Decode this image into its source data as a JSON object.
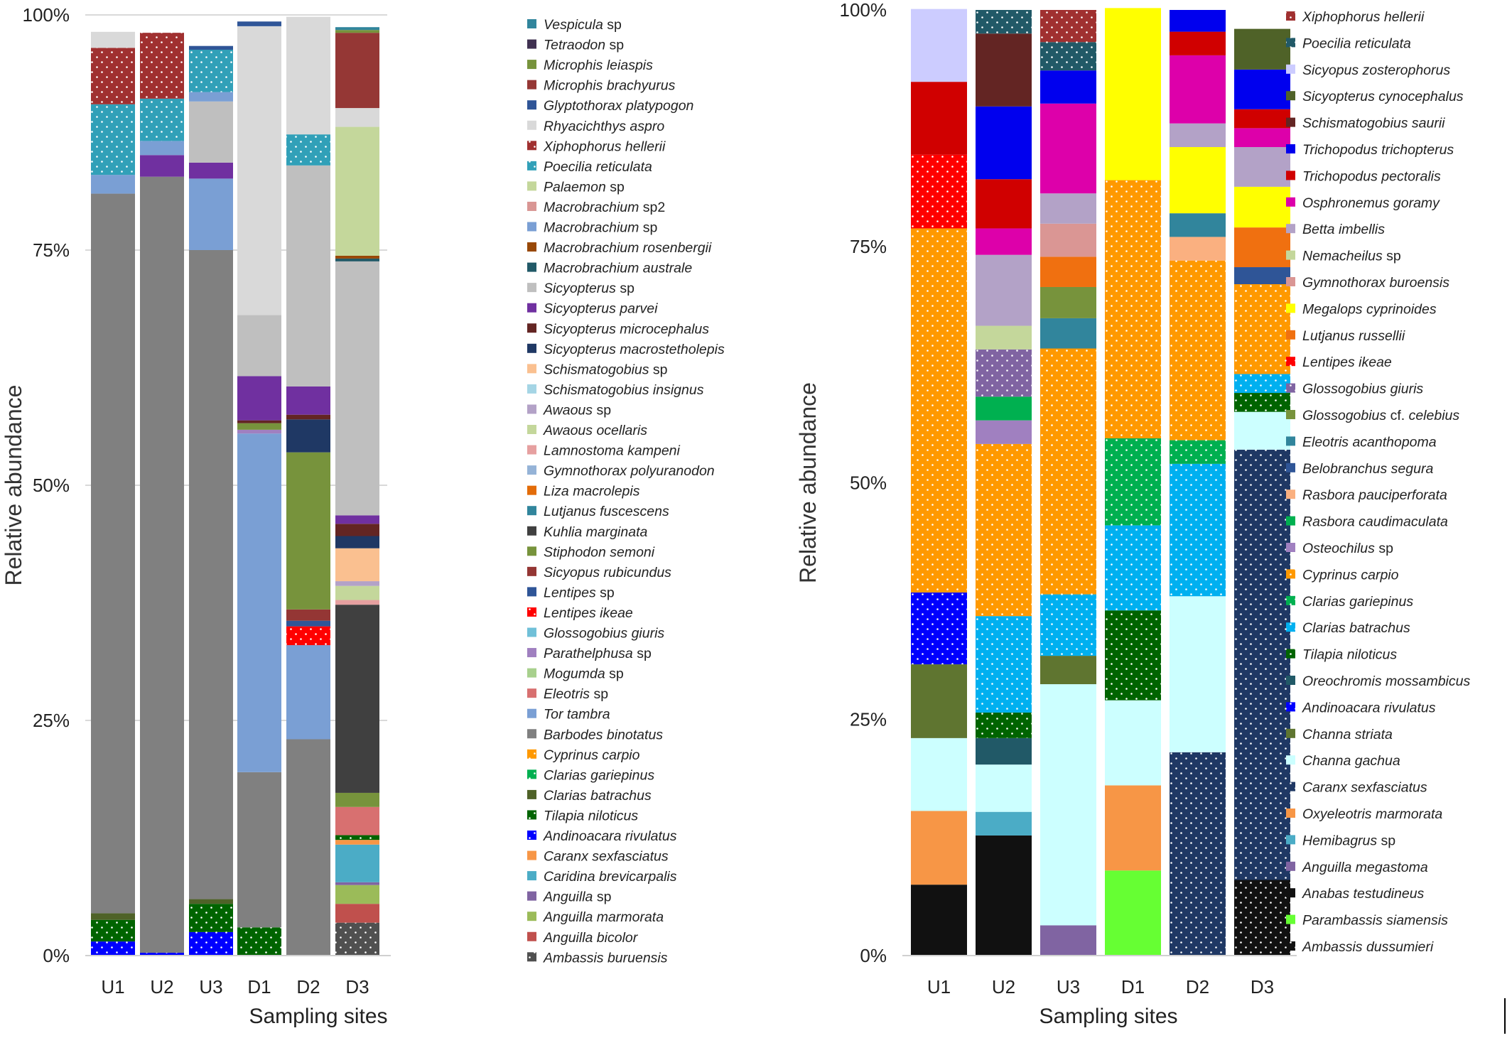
{
  "chart_data": [
    {
      "type": "stacked_bar",
      "x": [
        "U1",
        "U2",
        "U3",
        "D1",
        "D2",
        "D3"
      ],
      "xlabel": "Sampling sites",
      "ylabel": "Relative abundance",
      "yticks": [
        "0%",
        "25%",
        "50%",
        "75%",
        "100%"
      ],
      "ylim": [
        0,
        100
      ],
      "grid": true,
      "legend_position": "right",
      "series": [
        {
          "name": "Ambassis buruensis",
          "color": "#505050",
          "pattern": true,
          "values": [
            0,
            0,
            0,
            0,
            0,
            3.5
          ]
        },
        {
          "name": "Anguilla bicolor",
          "color": "#c0504d",
          "values": [
            0,
            0,
            0,
            0,
            0,
            2
          ]
        },
        {
          "name": "Anguilla marmorata",
          "color": "#9bbb59",
          "values": [
            0,
            0,
            0,
            0,
            0,
            2
          ]
        },
        {
          "name": "Anguilla sp",
          "color": "#8064a2",
          "values": [
            0,
            0,
            0,
            0,
            0,
            0.3
          ]
        },
        {
          "name": "Caridina brevicarpalis",
          "color": "#4bacc6",
          "values": [
            0,
            0,
            0,
            0,
            0,
            4
          ]
        },
        {
          "name": "Caranx sexfasciatus",
          "color": "#f79646",
          "values": [
            0,
            0,
            0,
            0,
            0,
            0.5
          ]
        },
        {
          "name": "Andinoacara rivulatus",
          "color": "#0000ff",
          "pattern": true,
          "values": [
            1.5,
            0.3,
            2.5,
            0,
            0,
            0
          ]
        },
        {
          "name": "Tilapia niloticus",
          "color": "#006400",
          "pattern": true,
          "values": [
            2.3,
            0,
            3,
            3,
            0,
            0.5
          ]
        },
        {
          "name": "Clarias batrachus",
          "color": "#4f6228",
          "values": [
            0.7,
            0,
            0.5,
            0,
            0,
            0
          ]
        },
        {
          "name": "Clarias gariepinus",
          "color": "#00b050",
          "pattern": true,
          "values": [
            0,
            0,
            0,
            0,
            0,
            0
          ]
        },
        {
          "name": "Cyprinus carpio",
          "color": "#ff9900",
          "pattern": true,
          "values": [
            0,
            0,
            0,
            0,
            0,
            0
          ]
        },
        {
          "name": "Barbodes binotatus",
          "color": "#808080",
          "values": [
            76.5,
            82.5,
            69,
            16.5,
            23,
            0
          ]
        },
        {
          "name": "Tor tambra",
          "color": "#7a9fd4",
          "values": [
            0,
            0,
            7.6,
            36,
            10,
            0
          ]
        },
        {
          "name": "Eleotris sp",
          "color": "#d87070",
          "values": [
            0,
            0,
            0,
            0,
            0,
            3
          ]
        },
        {
          "name": "Mogumda sp",
          "color": "#a8d08d",
          "values": [
            0,
            0,
            0,
            0,
            0,
            0
          ]
        },
        {
          "name": "Parathelphusa sp",
          "color": "#a080c0",
          "values": [
            0,
            0,
            0,
            0.4,
            0,
            0
          ]
        },
        {
          "name": "Glossogobius giuris",
          "color": "#70c0d8",
          "values": [
            0,
            0,
            0,
            0,
            0,
            0
          ]
        },
        {
          "name": "Lentipes ikeae",
          "color": "#ff0000",
          "pattern": true,
          "values": [
            0,
            0,
            0,
            0,
            2,
            0
          ]
        },
        {
          "name": "Lentipes sp",
          "color": "#2f5597",
          "values": [
            0,
            0,
            0,
            0,
            0.6,
            0
          ]
        },
        {
          "name": "Sicyopus rubicundus",
          "color": "#943634",
          "values": [
            0,
            0,
            0,
            0,
            1.2,
            0
          ]
        },
        {
          "name": "Stiphodon semoni",
          "color": "#77933c",
          "values": [
            0,
            0,
            0,
            0.7,
            16.7,
            1.5
          ]
        },
        {
          "name": "Kuhlia marginata",
          "color": "#404040",
          "values": [
            0,
            0,
            0,
            0,
            0,
            20
          ]
        },
        {
          "name": "Lutjanus fuscescens",
          "color": "#31859c",
          "values": [
            0,
            0,
            0,
            0,
            0,
            0
          ]
        },
        {
          "name": "Liza macrolepis",
          "color": "#e36c09",
          "values": [
            0,
            0,
            0,
            0,
            0,
            0
          ]
        },
        {
          "name": "Gymnothorax polyuranodon",
          "color": "#95b3d7",
          "values": [
            0,
            0,
            0,
            0,
            0,
            0
          ]
        },
        {
          "name": "Lamnostoma kampeni",
          "color": "#e6a0a0",
          "values": [
            0,
            0,
            0,
            0,
            0,
            0.5
          ]
        },
        {
          "name": "Awaous ocellaris",
          "color": "#c4d79b",
          "values": [
            0,
            0,
            0,
            0,
            0,
            1.5
          ]
        },
        {
          "name": "Awaous sp",
          "color": "#b3a2c7",
          "values": [
            0,
            0,
            0,
            0,
            0,
            0.5
          ]
        },
        {
          "name": "Schismatogobius insignus",
          "color": "#a5d5e5",
          "values": [
            0,
            0,
            0,
            0,
            0,
            0
          ]
        },
        {
          "name": "Schismatogobius sp",
          "color": "#fac090",
          "values": [
            0,
            0,
            0,
            0,
            0,
            3.5
          ]
        },
        {
          "name": "Sicyopterus macrostetholepis",
          "color": "#1f3864",
          "values": [
            0,
            0,
            0,
            0,
            3.5,
            1.3
          ]
        },
        {
          "name": "Sicyopterus microcephalus",
          "color": "#632523",
          "values": [
            0,
            0,
            0,
            0.3,
            0.5,
            1.3
          ]
        },
        {
          "name": "Sicyopterus parvei",
          "color": "#7030a0",
          "values": [
            0,
            2.3,
            1.7,
            4.7,
            3,
            0.9
          ]
        },
        {
          "name": "Sicyopterus sp",
          "color": "#bfbfbf",
          "values": [
            0,
            0,
            6.5,
            6.5,
            23.5,
            27
          ]
        },
        {
          "name": "Macrobrachium australe",
          "color": "#215967",
          "values": [
            0,
            0,
            0,
            0,
            0,
            0.3
          ]
        },
        {
          "name": "Macrobrachium rosenbergii",
          "color": "#984807",
          "values": [
            0,
            0,
            0,
            0,
            0,
            0.3
          ]
        },
        {
          "name": "Macrobrachium sp",
          "color": "#7a9fd4",
          "values": [
            2,
            1.5,
            1,
            0,
            0,
            0
          ]
        },
        {
          "name": "Macrobrachium sp2",
          "color": "#d99694",
          "values": [
            0,
            0,
            0,
            0,
            0,
            0
          ]
        },
        {
          "name": "Palaemon sp",
          "color": "#c4d79b",
          "values": [
            0,
            0,
            0,
            0,
            0,
            13.7
          ]
        },
        {
          "name": "Poecilia reticulata",
          "color": "#31a0b8",
          "pattern": true,
          "values": [
            7.5,
            4.5,
            4.5,
            0,
            3.3,
            0
          ]
        },
        {
          "name": "Xiphophorus hellerii",
          "color": "#a03030",
          "pattern": true,
          "values": [
            6,
            7,
            0,
            0,
            0,
            0
          ]
        },
        {
          "name": "Rhyacichthys aspro",
          "color": "#d9d9d9",
          "values": [
            1.7,
            0,
            0,
            30.7,
            12.5,
            2
          ]
        },
        {
          "name": "Glyptothorax platypogon",
          "color": "#2f5597",
          "values": [
            0,
            0,
            0.4,
            0.5,
            0,
            0
          ]
        },
        {
          "name": "Microphis brachyurus",
          "color": "#953735",
          "values": [
            0,
            0,
            0,
            0,
            0,
            8
          ]
        },
        {
          "name": "Microphis leiaspis",
          "color": "#77933c",
          "values": [
            0,
            0,
            0,
            0,
            0,
            0.3
          ]
        },
        {
          "name": "Tetraodon sp",
          "color": "#403151",
          "values": [
            0,
            0,
            0,
            0,
            0,
            0
          ]
        },
        {
          "name": "Vespicula sp",
          "color": "#31859c",
          "values": [
            0,
            0,
            0,
            0,
            0,
            0.3
          ]
        }
      ]
    },
    {
      "type": "stacked_bar",
      "x": [
        "U1",
        "U2",
        "U3",
        "D1",
        "D2",
        "D3"
      ],
      "xlabel": "Sampling sites",
      "ylabel": "Relative abundance",
      "yticks": [
        "0%",
        "25%",
        "50%",
        "75%",
        "100%"
      ],
      "ylim": [
        0,
        100
      ],
      "grid": false,
      "legend_position": "right",
      "series": [
        {
          "name": "Ambassis dussumieri",
          "color": "#111111",
          "pattern": true,
          "values": [
            0,
            0,
            0,
            0,
            0,
            8
          ]
        },
        {
          "name": "Parambassis siamensis",
          "color": "#66ff33",
          "values": [
            0,
            0,
            0,
            9,
            0,
            0
          ]
        },
        {
          "name": "Anabas testudineus",
          "color": "#111111",
          "values": [
            7.5,
            12.7,
            0,
            0,
            0,
            0
          ]
        },
        {
          "name": "Anguilla megastoma",
          "color": "#8064a2",
          "values": [
            0,
            0,
            3.2,
            0,
            0,
            0
          ]
        },
        {
          "name": "Hemibagrus sp",
          "color": "#4bacc6",
          "values": [
            0,
            2.5,
            0,
            0,
            0,
            0
          ]
        },
        {
          "name": "Oxyeleotris marmorata",
          "color": "#f79646",
          "values": [
            7.8,
            0,
            0,
            9,
            0,
            0
          ]
        },
        {
          "name": "Caranx sexfasciatus",
          "color": "#1f3864",
          "pattern": true,
          "values": [
            0,
            0,
            0,
            0,
            21.5,
            45.5
          ]
        },
        {
          "name": "Channa gachua",
          "color": "#ccffff",
          "values": [
            7.7,
            5,
            25.5,
            9,
            16.5,
            4
          ]
        },
        {
          "name": "Channa striata",
          "color": "#5f7530",
          "values": [
            7.8,
            0,
            3,
            0,
            0,
            0
          ]
        },
        {
          "name": "Andinoacara rivulatus",
          "color": "#0000ff",
          "pattern": true,
          "values": [
            7.6,
            0,
            0,
            0,
            0,
            0
          ]
        },
        {
          "name": "Oreochromis mossambicus",
          "color": "#215967",
          "values": [
            0,
            2.8,
            0,
            0,
            0,
            0
          ]
        },
        {
          "name": "Tilapia niloticus",
          "color": "#006400",
          "pattern": true,
          "values": [
            0,
            2.7,
            0,
            9.5,
            0,
            2
          ]
        },
        {
          "name": "Clarias batrachus",
          "color": "#00b0f0",
          "pattern": true,
          "values": [
            0,
            10.2,
            6.5,
            9,
            14,
            2
          ]
        },
        {
          "name": "Clarias gariepinus",
          "color": "#00b050",
          "pattern": true,
          "values": [
            0,
            0,
            0,
            9.2,
            2.5,
            0
          ]
        },
        {
          "name": "Cyprinus carpio",
          "color": "#ff9900",
          "pattern": true,
          "values": [
            38.5,
            18.2,
            26,
            27.3,
            19,
            9.5
          ]
        },
        {
          "name": "Osteochilus sp",
          "color": "#a080c0",
          "values": [
            0,
            2.5,
            0,
            0,
            0,
            0
          ]
        },
        {
          "name": "Rasbora caudimaculata",
          "color": "#00b050",
          "values": [
            0,
            2.5,
            0,
            0,
            0,
            0
          ]
        },
        {
          "name": "Rasbora pauciperforata",
          "color": "#fab080",
          "values": [
            0,
            0,
            0,
            0,
            2.5,
            0
          ]
        },
        {
          "name": "Belobranchus segura",
          "color": "#2f5597",
          "values": [
            0,
            0,
            0,
            0,
            0,
            1.8
          ]
        },
        {
          "name": "Eleotris acanthopoma",
          "color": "#31859c",
          "values": [
            0,
            0,
            3.2,
            0,
            2.5,
            0
          ]
        },
        {
          "name": "Glossogobius cf. celebius",
          "color": "#77933c",
          "values": [
            0,
            0,
            3.3,
            0,
            0,
            0
          ]
        },
        {
          "name": "Glossogobius giuris",
          "color": "#8064a2",
          "pattern": true,
          "values": [
            0,
            5,
            0,
            0,
            0,
            0
          ]
        },
        {
          "name": "Lentipes ikeae",
          "color": "#ff0000",
          "pattern": true,
          "values": [
            7.8,
            0,
            0,
            0,
            0,
            0
          ]
        },
        {
          "name": "Lutjanus russellii",
          "color": "#f07010",
          "values": [
            0,
            0,
            3.2,
            0,
            0,
            4.2
          ]
        },
        {
          "name": "Megalops cyprinoides",
          "color": "#ffff00",
          "values": [
            0,
            0,
            0,
            18.2,
            7,
            4.3
          ]
        },
        {
          "name": "Gymnothorax buroensis",
          "color": "#da9694",
          "values": [
            0,
            0,
            3.5,
            0,
            0,
            0
          ]
        },
        {
          "name": "Nemacheilus sp",
          "color": "#c4d79b",
          "values": [
            0,
            2.5,
            0,
            0,
            0,
            0
          ]
        },
        {
          "name": "Betta imbellis",
          "color": "#b3a2c7",
          "values": [
            0,
            7.5,
            3.2,
            0,
            2.5,
            4.2
          ]
        },
        {
          "name": "Osphronemus goramy",
          "color": "#dd00aa",
          "values": [
            0,
            2.8,
            9.5,
            0,
            7.2,
            2
          ]
        },
        {
          "name": "Trichopodus pectoralis",
          "color": "#d00000",
          "values": [
            7.7,
            5.2,
            0,
            0,
            2.5,
            2
          ]
        },
        {
          "name": "Trichopodus trichopterus",
          "color": "#0000ee",
          "values": [
            0,
            7.7,
            3.5,
            0,
            2.3,
            4.2
          ]
        },
        {
          "name": "Schismatogobius saurii",
          "color": "#632523",
          "values": [
            0,
            7.7,
            0,
            0,
            0,
            0
          ]
        },
        {
          "name": "Sicyopterus cynocephalus",
          "color": "#4f6228",
          "values": [
            0,
            0,
            0,
            0,
            0,
            4.3
          ]
        },
        {
          "name": "Sicyopus zosterophorus",
          "color": "#ccccff",
          "values": [
            7.7,
            0,
            0,
            0,
            0,
            0
          ]
        },
        {
          "name": "Poecilia reticulata",
          "color": "#215967",
          "pattern": true,
          "values": [
            0,
            2.5,
            3,
            0,
            0,
            0
          ]
        },
        {
          "name": "Xiphophorus hellerii",
          "color": "#a03030",
          "pattern": true,
          "values": [
            0,
            0,
            3.4,
            0,
            0,
            0
          ]
        }
      ]
    }
  ]
}
